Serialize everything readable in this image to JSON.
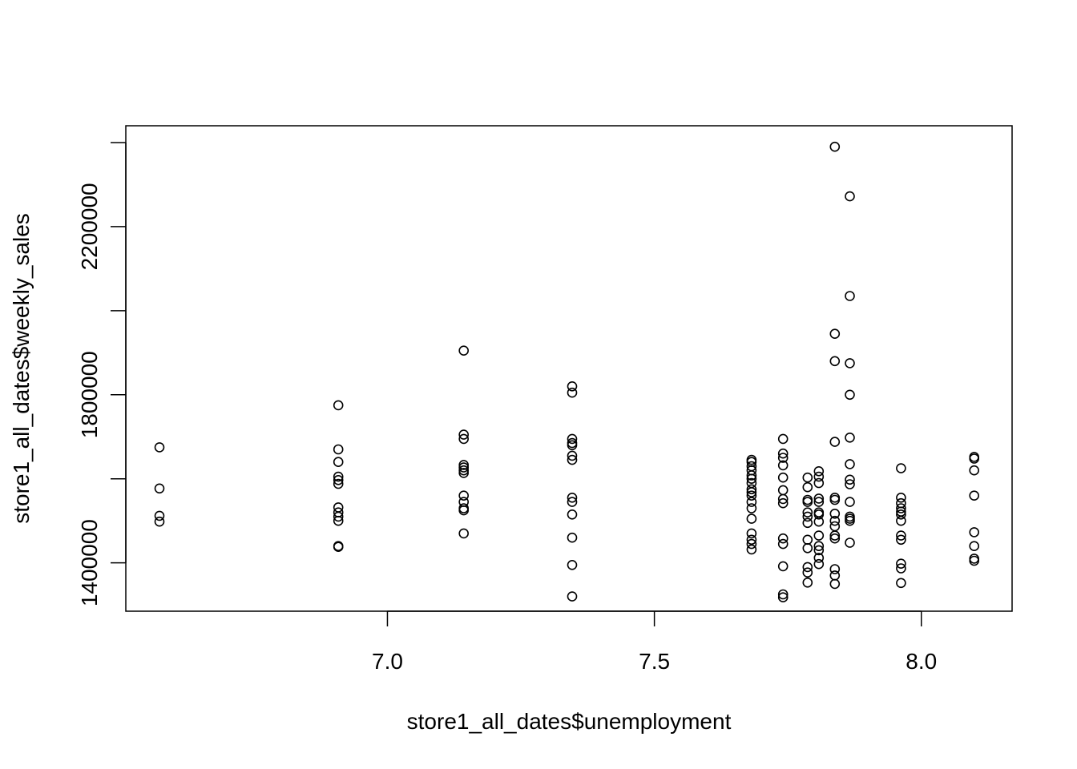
{
  "chart_data": {
    "type": "scatter",
    "title": "",
    "xlabel": "store1_all_dates$unemployment",
    "ylabel": "store1_all_dates$weekly_sales",
    "xlim": [
      6.51,
      8.17
    ],
    "ylim": [
      1285000,
      2440000
    ],
    "x_ticks": [
      7.0,
      7.5,
      8.0
    ],
    "x_tick_labels": [
      "7.0",
      "7.5",
      "8.0"
    ],
    "y_ticks": [
      1400000,
      1600000,
      1800000,
      2000000,
      2200000,
      2400000
    ],
    "y_tick_labels": [
      "1400000",
      "",
      "1800000",
      "",
      "2200000",
      ""
    ],
    "grid": false,
    "marker": "open-circle",
    "color": "#000000",
    "points": [
      [
        6.573,
        1675000
      ],
      [
        6.573,
        1577000
      ],
      [
        6.573,
        1512000
      ],
      [
        6.573,
        1498000
      ],
      [
        6.908,
        1775000
      ],
      [
        6.908,
        1670000
      ],
      [
        6.908,
        1640000
      ],
      [
        6.908,
        1605000
      ],
      [
        6.908,
        1597000
      ],
      [
        6.908,
        1588000
      ],
      [
        6.908,
        1532000
      ],
      [
        6.908,
        1520000
      ],
      [
        6.908,
        1510000
      ],
      [
        6.908,
        1500000
      ],
      [
        6.908,
        1440000
      ],
      [
        6.908,
        1438000
      ],
      [
        7.143,
        1905000
      ],
      [
        7.143,
        1705000
      ],
      [
        7.143,
        1695000
      ],
      [
        7.143,
        1633000
      ],
      [
        7.143,
        1627000
      ],
      [
        7.143,
        1620000
      ],
      [
        7.143,
        1614000
      ],
      [
        7.143,
        1560000
      ],
      [
        7.143,
        1545000
      ],
      [
        7.143,
        1530000
      ],
      [
        7.143,
        1525000
      ],
      [
        7.143,
        1470000
      ],
      [
        7.346,
        1820000
      ],
      [
        7.346,
        1805000
      ],
      [
        7.346,
        1695000
      ],
      [
        7.346,
        1685000
      ],
      [
        7.346,
        1680000
      ],
      [
        7.346,
        1655000
      ],
      [
        7.346,
        1645000
      ],
      [
        7.346,
        1555000
      ],
      [
        7.346,
        1545000
      ],
      [
        7.346,
        1515000
      ],
      [
        7.346,
        1460000
      ],
      [
        7.346,
        1395000
      ],
      [
        7.346,
        1320000
      ],
      [
        7.682,
        1645000
      ],
      [
        7.682,
        1640000
      ],
      [
        7.682,
        1630000
      ],
      [
        7.682,
        1620000
      ],
      [
        7.682,
        1608000
      ],
      [
        7.682,
        1600000
      ],
      [
        7.682,
        1590000
      ],
      [
        7.682,
        1575000
      ],
      [
        7.682,
        1568000
      ],
      [
        7.682,
        1560000
      ],
      [
        7.682,
        1545000
      ],
      [
        7.682,
        1530000
      ],
      [
        7.682,
        1505000
      ],
      [
        7.682,
        1470000
      ],
      [
        7.682,
        1455000
      ],
      [
        7.682,
        1445000
      ],
      [
        7.682,
        1432000
      ],
      [
        7.741,
        1695000
      ],
      [
        7.741,
        1660000
      ],
      [
        7.741,
        1650000
      ],
      [
        7.741,
        1632000
      ],
      [
        7.741,
        1603000
      ],
      [
        7.741,
        1573000
      ],
      [
        7.741,
        1552000
      ],
      [
        7.741,
        1542000
      ],
      [
        7.741,
        1458000
      ],
      [
        7.741,
        1445000
      ],
      [
        7.741,
        1392000
      ],
      [
        7.741,
        1325000
      ],
      [
        7.741,
        1318000
      ],
      [
        7.787,
        1603000
      ],
      [
        7.787,
        1580000
      ],
      [
        7.787,
        1550000
      ],
      [
        7.787,
        1545000
      ],
      [
        7.787,
        1520000
      ],
      [
        7.787,
        1510000
      ],
      [
        7.787,
        1495000
      ],
      [
        7.787,
        1455000
      ],
      [
        7.787,
        1435000
      ],
      [
        7.787,
        1390000
      ],
      [
        7.787,
        1377000
      ],
      [
        7.787,
        1353000
      ],
      [
        7.808,
        1618000
      ],
      [
        7.808,
        1605000
      ],
      [
        7.808,
        1590000
      ],
      [
        7.808,
        1553000
      ],
      [
        7.808,
        1545000
      ],
      [
        7.808,
        1520000
      ],
      [
        7.808,
        1515000
      ],
      [
        7.808,
        1498000
      ],
      [
        7.808,
        1465000
      ],
      [
        7.808,
        1440000
      ],
      [
        7.808,
        1430000
      ],
      [
        7.808,
        1412000
      ],
      [
        7.808,
        1397000
      ],
      [
        7.838,
        2390000
      ],
      [
        7.838,
        1945000
      ],
      [
        7.838,
        1880000
      ],
      [
        7.838,
        1688000
      ],
      [
        7.838,
        1555000
      ],
      [
        7.838,
        1550000
      ],
      [
        7.838,
        1517000
      ],
      [
        7.838,
        1500000
      ],
      [
        7.838,
        1487000
      ],
      [
        7.838,
        1465000
      ],
      [
        7.838,
        1458000
      ],
      [
        7.838,
        1385000
      ],
      [
        7.838,
        1370000
      ],
      [
        7.838,
        1350000
      ],
      [
        7.866,
        2272000
      ],
      [
        7.866,
        2035000
      ],
      [
        7.866,
        1875000
      ],
      [
        7.866,
        1800000
      ],
      [
        7.866,
        1698000
      ],
      [
        7.866,
        1635000
      ],
      [
        7.866,
        1598000
      ],
      [
        7.866,
        1587000
      ],
      [
        7.866,
        1545000
      ],
      [
        7.866,
        1510000
      ],
      [
        7.866,
        1505000
      ],
      [
        7.866,
        1500000
      ],
      [
        7.866,
        1448000
      ],
      [
        7.962,
        1625000
      ],
      [
        7.962,
        1555000
      ],
      [
        7.962,
        1542000
      ],
      [
        7.962,
        1530000
      ],
      [
        7.962,
        1522000
      ],
      [
        7.962,
        1515000
      ],
      [
        7.962,
        1500000
      ],
      [
        7.962,
        1465000
      ],
      [
        7.962,
        1455000
      ],
      [
        7.962,
        1398000
      ],
      [
        7.962,
        1387000
      ],
      [
        7.962,
        1352000
      ],
      [
        8.099,
        1652000
      ],
      [
        8.099,
        1648000
      ],
      [
        8.099,
        1620000
      ],
      [
        8.099,
        1560000
      ],
      [
        8.099,
        1473000
      ],
      [
        8.099,
        1440000
      ],
      [
        8.099,
        1410000
      ],
      [
        8.099,
        1405000
      ]
    ]
  }
}
